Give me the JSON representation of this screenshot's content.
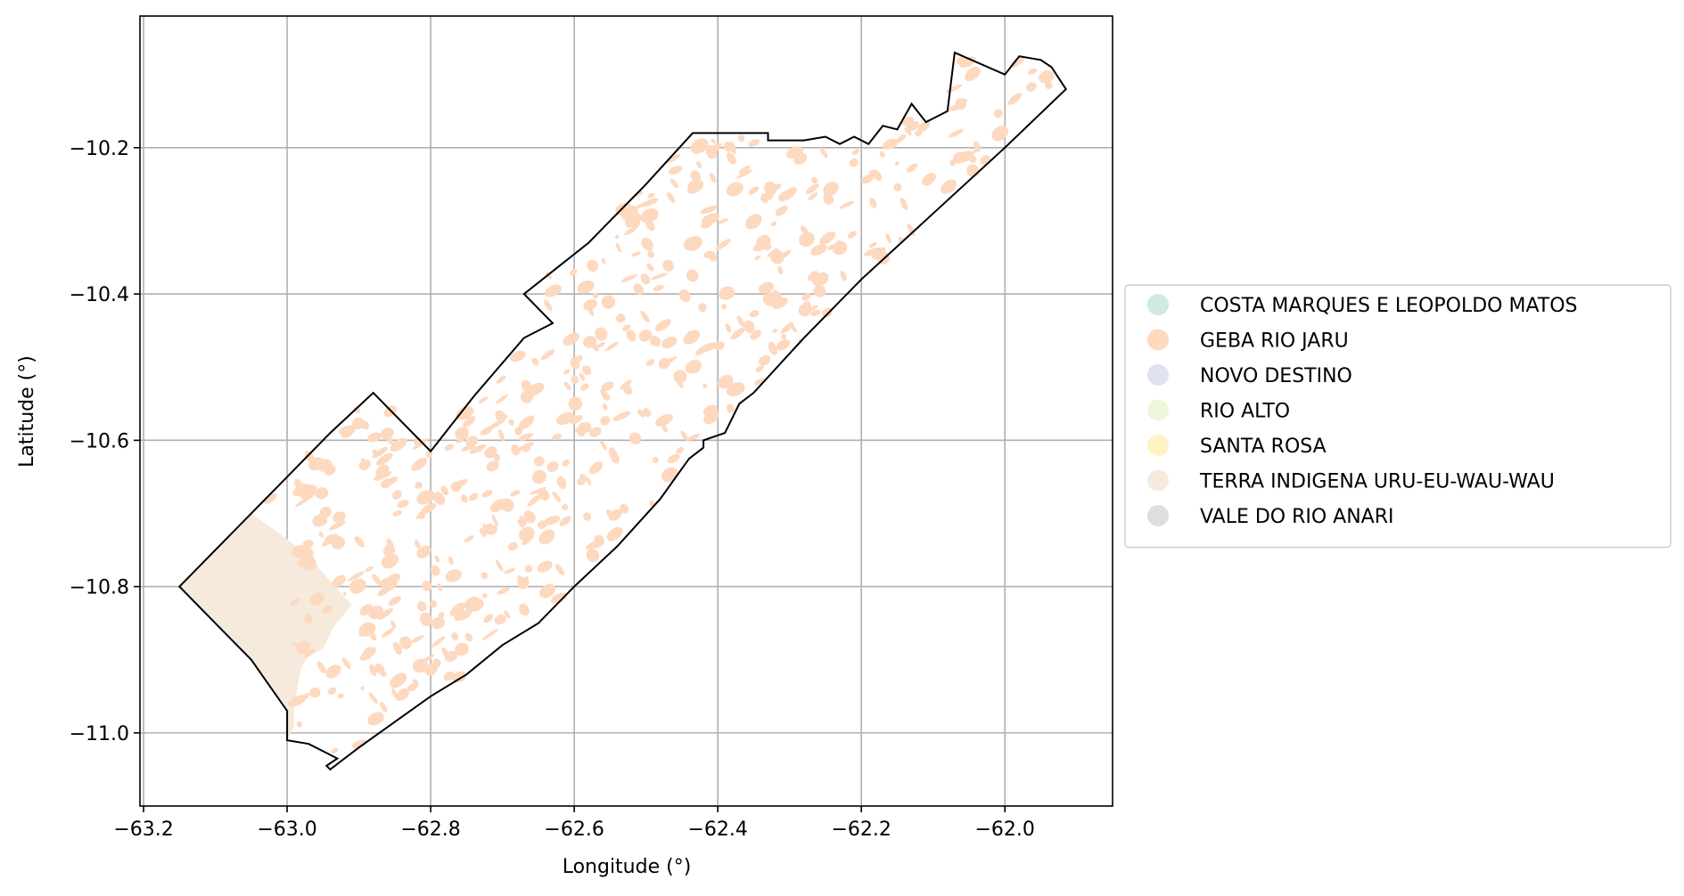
{
  "chart_data": {
    "type": "map",
    "xlabel": "Longitude (°)",
    "ylabel": "Latitude (°)",
    "xlim": [
      -63.205,
      -61.85
    ],
    "ylim": [
      -11.1,
      -10.02
    ],
    "xticks": [
      -63.2,
      -63.0,
      -62.8,
      -62.6,
      -62.4,
      -62.2,
      -62.0
    ],
    "xtick_labels": [
      "−63.2",
      "−63.0",
      "−62.8",
      "−62.6",
      "−62.4",
      "−62.2",
      "−62.0"
    ],
    "yticks": [
      -10.2,
      -10.4,
      -10.6,
      -10.8,
      -11.0
    ],
    "ytick_labels": [
      "−10.2",
      "−10.4",
      "−10.6",
      "−10.8",
      "−11.0"
    ],
    "grid": true,
    "legend_position": "right",
    "legend": [
      {
        "label": "COSTA MARQUES E LEOPOLDO MATOS",
        "color": "#cfeadf"
      },
      {
        "label": "GEBA RIO JARU",
        "color": "#fdd9c0"
      },
      {
        "label": "NOVO DESTINO",
        "color": "#dfe2f1"
      },
      {
        "label": "RIO ALTO",
        "color": "#eef7dc"
      },
      {
        "label": "SANTA ROSA",
        "color": "#fff3c4"
      },
      {
        "label": "TERRA INDIGENA URU-EU-WAU-WAU",
        "color": "#f5eadc"
      },
      {
        "label": "VALE DO RIO ANARI",
        "color": "#dedede"
      }
    ],
    "boundary_outline_color": "#000000",
    "boundary": [
      [
        -63.15,
        -10.8
      ],
      [
        -63.07,
        -10.72
      ],
      [
        -63.0,
        -10.65
      ],
      [
        -62.94,
        -10.59
      ],
      [
        -62.88,
        -10.535
      ],
      [
        -62.8,
        -10.615
      ],
      [
        -62.74,
        -10.54
      ],
      [
        -62.67,
        -10.46
      ],
      [
        -62.63,
        -10.44
      ],
      [
        -62.67,
        -10.4
      ],
      [
        -62.58,
        -10.33
      ],
      [
        -62.5,
        -10.25
      ],
      [
        -62.435,
        -10.18
      ],
      [
        -62.33,
        -10.18
      ],
      [
        -62.33,
        -10.19
      ],
      [
        -62.3,
        -10.19
      ],
      [
        -62.28,
        -10.19
      ],
      [
        -62.25,
        -10.185
      ],
      [
        -62.23,
        -10.195
      ],
      [
        -62.21,
        -10.185
      ],
      [
        -62.19,
        -10.195
      ],
      [
        -62.17,
        -10.17
      ],
      [
        -62.15,
        -10.175
      ],
      [
        -62.13,
        -10.14
      ],
      [
        -62.11,
        -10.165
      ],
      [
        -62.08,
        -10.15
      ],
      [
        -62.07,
        -10.07
      ],
      [
        -62.0,
        -10.1
      ],
      [
        -61.98,
        -10.075
      ],
      [
        -61.95,
        -10.08
      ],
      [
        -61.935,
        -10.09
      ],
      [
        -61.915,
        -10.12
      ],
      [
        -62.0,
        -10.2
      ],
      [
        -62.1,
        -10.29
      ],
      [
        -62.2,
        -10.38
      ],
      [
        -62.28,
        -10.46
      ],
      [
        -62.35,
        -10.535
      ],
      [
        -62.37,
        -10.55
      ],
      [
        -62.39,
        -10.59
      ],
      [
        -62.42,
        -10.6
      ],
      [
        -62.42,
        -10.61
      ],
      [
        -62.44,
        -10.625
      ],
      [
        -62.48,
        -10.68
      ],
      [
        -62.54,
        -10.745
      ],
      [
        -62.6,
        -10.8
      ],
      [
        -62.65,
        -10.85
      ],
      [
        -62.7,
        -10.88
      ],
      [
        -62.75,
        -10.92
      ],
      [
        -62.8,
        -10.95
      ],
      [
        -62.85,
        -10.985
      ],
      [
        -62.9,
        -11.02
      ],
      [
        -62.94,
        -11.05
      ],
      [
        -62.945,
        -11.045
      ],
      [
        -62.93,
        -11.035
      ],
      [
        -62.95,
        -11.025
      ],
      [
        -62.97,
        -11.015
      ],
      [
        -63.0,
        -11.01
      ],
      [
        -63.0,
        -10.97
      ],
      [
        -63.05,
        -10.9
      ],
      [
        -63.1,
        -10.85
      ],
      [
        -63.15,
        -10.8
      ]
    ],
    "regions": [
      {
        "name": "TERRA INDIGENA URU-EU-WAU-WAU",
        "color": "#f5eadc",
        "polygon": [
          [
            -63.15,
            -10.8
          ],
          [
            -63.05,
            -10.7
          ],
          [
            -63.0,
            -10.735
          ],
          [
            -62.96,
            -10.77
          ],
          [
            -62.91,
            -10.825
          ],
          [
            -62.935,
            -10.855
          ],
          [
            -62.95,
            -10.885
          ],
          [
            -62.97,
            -10.895
          ],
          [
            -62.98,
            -10.91
          ],
          [
            -62.985,
            -10.935
          ],
          [
            -62.99,
            -10.965
          ],
          [
            -62.99,
            -10.99
          ],
          [
            -63.0,
            -11.01
          ],
          [
            -63.0,
            -10.97
          ],
          [
            -63.05,
            -10.9
          ],
          [
            -63.1,
            -10.85
          ]
        ]
      }
    ]
  }
}
